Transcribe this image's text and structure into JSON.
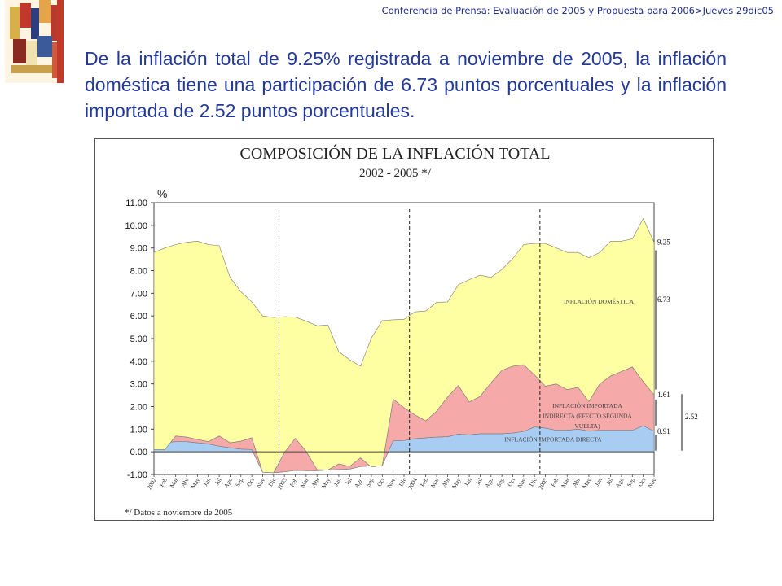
{
  "header": {
    "text": "Conferencia de Prensa: Evaluación de 2005 y Propuesta para 2006>Jueves 29dic05"
  },
  "slide": {
    "body_text": "De la inflación total de 9.25% registrada a noviembre de 2005, la inflación doméstica tiene una participación de 6.73 puntos porcentuales y la inflación importada de 2.52 puntos porcentuales."
  },
  "chart_data": {
    "type": "area",
    "title": "COMPOSICIÓN DE LA INFLACIÓN TOTAL",
    "subtitle": "2002 - 2005 */",
    "ylabel": "%",
    "ylim": [
      -1.0,
      11.0
    ],
    "yticks": [
      "11.00",
      "10.00",
      "9.00",
      "8.00",
      "7.00",
      "6.00",
      "5.00",
      "4.00",
      "3.00",
      "2.00",
      "1.00",
      "0.00",
      "-1.00"
    ],
    "footnote": "*/ Datos a noviembre de 2005",
    "x_labels": [
      "2002",
      "Feb",
      "Mar",
      "Abr",
      "May",
      "Jun",
      "Jul",
      "Ago",
      "Sep",
      "Oct",
      "Nov",
      "Dic",
      "2003",
      "Feb",
      "Mar",
      "Abr",
      "May",
      "Jun",
      "Jul",
      "Ago",
      "Sep",
      "Oct",
      "Nov",
      "Dic",
      "2004",
      "Feb",
      "Mar",
      "Abr",
      "May",
      "Jun",
      "Jul",
      "Ago",
      "Sep",
      "Oct",
      "Nov",
      "Dic",
      "2005",
      "Feb",
      "Mar",
      "Abr",
      "May",
      "Jun",
      "Jul",
      "Ago",
      "Sep",
      "Oct",
      "Nov"
    ],
    "year_separators_after": [
      11,
      23,
      35
    ],
    "series": [
      {
        "name": "INFLACIÓN IMPORTADA DIRECTA",
        "color": "#a9cdf2",
        "values": [
          0.45,
          0.42,
          0.45,
          0.45,
          0.4,
          0.35,
          0.25,
          0.18,
          0.12,
          0.1,
          -0.9,
          -0.92,
          -0.88,
          -0.82,
          -0.83,
          -0.83,
          -0.8,
          -0.78,
          -0.76,
          -0.65,
          -0.62,
          -0.6,
          0.48,
          0.5,
          0.58,
          0.62,
          0.65,
          0.67,
          0.78,
          0.75,
          0.8,
          0.8,
          0.8,
          0.83,
          0.9,
          1.1,
          1.05,
          0.95,
          0.95,
          1.0,
          0.92,
          0.95,
          0.95,
          0.95,
          0.95,
          1.15,
          0.91
        ]
      },
      {
        "name": "INFLACIÓN IMPORTADA INDIRECTA (EFECTO SEGUNDA VUELTA)",
        "color": "#f6a9a9",
        "values": [
          -0.35,
          -0.32,
          0.25,
          0.2,
          0.15,
          0.1,
          0.45,
          0.22,
          0.35,
          0.52,
          0.0,
          0.0,
          0.85,
          1.42,
          0.85,
          0.05,
          0.0,
          0.25,
          0.12,
          0.38,
          -0.05,
          0.0,
          1.85,
          1.45,
          1.05,
          0.75,
          1.15,
          1.75,
          2.15,
          1.45,
          1.65,
          2.25,
          2.8,
          2.95,
          2.95,
          2.3,
          1.85,
          2.05,
          1.8,
          1.85,
          1.3,
          2.05,
          2.4,
          2.6,
          2.8,
          1.95,
          1.61
        ]
      },
      {
        "name": "INFLACIÓN DOMÉSTICA",
        "color": "#fefea3",
        "values": [
          8.7,
          8.9,
          8.45,
          8.6,
          8.75,
          8.7,
          8.4,
          7.3,
          6.6,
          6.0,
          6.9,
          6.85,
          6.0,
          5.35,
          5.75,
          6.35,
          6.4,
          4.95,
          4.7,
          4.05,
          5.7,
          6.4,
          3.5,
          3.9,
          4.55,
          4.85,
          4.8,
          4.2,
          4.45,
          5.4,
          5.35,
          4.65,
          4.45,
          4.75,
          5.3,
          5.8,
          6.3,
          6.0,
          6.05,
          5.95,
          6.35,
          5.8,
          5.95,
          5.75,
          5.65,
          7.2,
          6.73
        ]
      }
    ],
    "total": {
      "name": "Inflación total",
      "values": [
        8.8,
        9.0,
        9.15,
        9.25,
        9.3,
        9.15,
        9.1,
        7.7,
        7.07,
        6.62,
        6.0,
        5.93,
        5.97,
        5.95,
        5.77,
        5.57,
        5.6,
        4.42,
        4.06,
        3.78,
        5.03,
        5.8,
        5.83,
        5.85,
        6.18,
        6.22,
        6.6,
        6.62,
        7.38,
        7.6,
        7.8,
        7.7,
        8.05,
        8.53,
        9.15,
        9.2,
        9.2,
        9.0,
        8.8,
        8.8,
        8.57,
        8.8,
        9.3,
        9.3,
        9.4,
        10.3,
        9.25
      ]
    },
    "annotations": {
      "total_end": "9.25",
      "domestic_end": "6.73",
      "indirect_end": "1.61",
      "direct_end": "0.91",
      "imported_total": "2.52"
    }
  }
}
